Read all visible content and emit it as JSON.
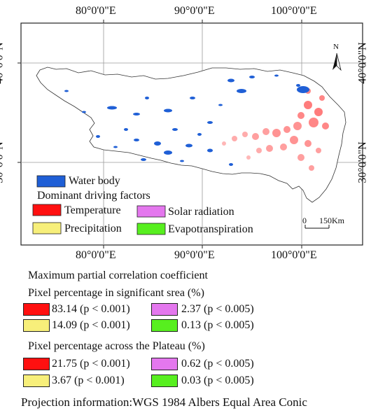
{
  "map": {
    "lon_labels": [
      "80°0'0\"E",
      "90°0'0\"E",
      "100°0'0\"E"
    ],
    "lat_labels": [
      "40°0'0\"N",
      "30°0'0\"N"
    ],
    "north_arrow": "N",
    "scale_bar": {
      "start": "0",
      "end": "150Km"
    },
    "map_legend": {
      "water": "Water body",
      "factors_title": "Dominant driving factors",
      "temperature": "Temperature",
      "solar": "Solar radiation",
      "precipitation": "Precipitation",
      "evapo": "Evapotranspiration"
    }
  },
  "colors": {
    "water": "#1f5fd6",
    "temperature": "#ff1010",
    "solar": "#e477ee",
    "precipitation": "#f7ef7a",
    "evapo": "#57ef1f"
  },
  "stats": {
    "title": "Maximum partial correlation coefficient",
    "significant": {
      "heading": "Pixel percentage in significant srea (%)",
      "temperature": "83.14 (p < 0.001)",
      "solar": "2.37 (p < 0.005)",
      "precipitation": "14.09 (p < 0.001)",
      "evapo": "0.13 (p < 0.005)"
    },
    "plateau": {
      "heading": "Pixel percentage across the Plateau (%)",
      "temperature": "21.75 (p < 0.001)",
      "solar": "0.62 (p < 0.005)",
      "precipitation": "3.67 (p < 0.001)",
      "evapo": "0.03 (p < 0.005)"
    }
  },
  "projection": "Projection information:WGS 1984 Albers Equal Area Conic"
}
